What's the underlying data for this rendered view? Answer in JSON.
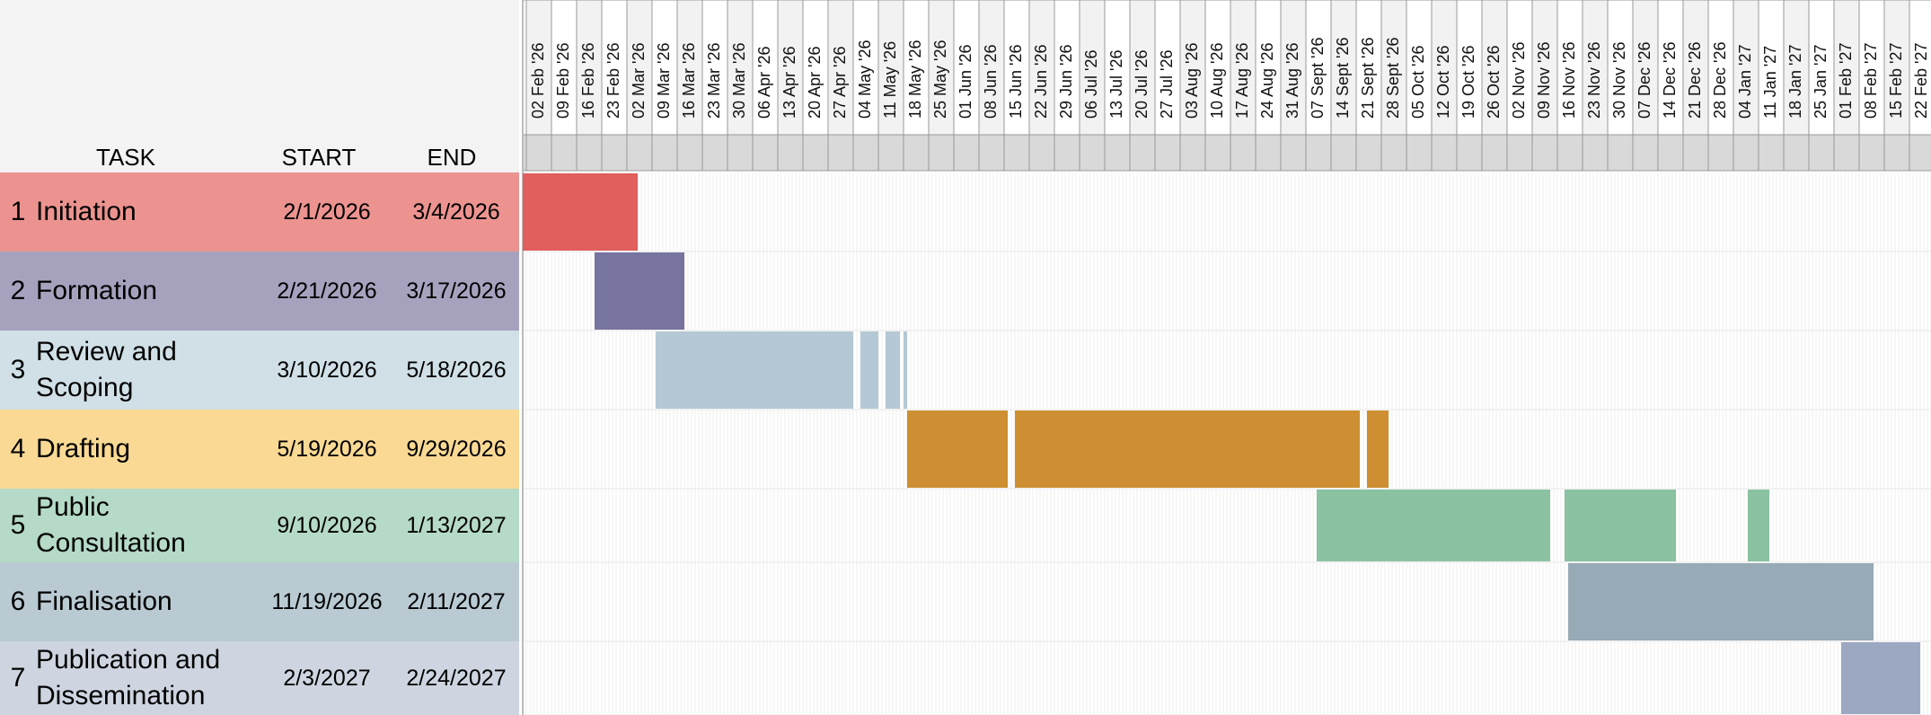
{
  "headers": {
    "task": "TASK",
    "start": "START",
    "end": "END"
  },
  "tasks": [
    {
      "num": "1",
      "name": "Initiation",
      "start": "2/1/2026",
      "end": "3/4/2026",
      "row_color": "#ec9390",
      "bar_color": "#e05e5b"
    },
    {
      "num": "2",
      "name": "Formation",
      "start": "2/21/2026",
      "end": "3/17/2026",
      "row_color": "#a6a2be",
      "bar_color": "#7874a0"
    },
    {
      "num": "3",
      "name": "Review and Scoping",
      "start": "3/10/2026",
      "end": "5/18/2026",
      "row_color": "#d0e0e6",
      "bar_color": "#b4c9d5"
    },
    {
      "num": "4",
      "name": "Drafting",
      "start": "5/19/2026",
      "end": "9/29/2026",
      "row_color": "#fad994",
      "bar_color": "#cd8f31"
    },
    {
      "num": "5",
      "name": "Public Consultation",
      "start": "9/10/2026",
      "end": "1/13/2027",
      "row_color": "#b5dac7",
      "bar_color": "#8bc2a1"
    },
    {
      "num": "6",
      "name": "Finalisation",
      "start": "11/19/2026",
      "end": "2/11/2027",
      "row_color": "#b9cad2",
      "bar_color": "#97abb6"
    },
    {
      "num": "7",
      "name": "Publication and Dissemination",
      "start": "2/3/2027",
      "end": "2/24/2027",
      "row_color": "#ced5e0",
      "bar_color": "#9ca8c2"
    }
  ],
  "chart_data": {
    "type": "bar",
    "orientation": "horizontal",
    "subtype": "gantt",
    "x_axis": {
      "type": "date",
      "tick_labels": [
        "02 Feb '26",
        "09 Feb '26",
        "16 Feb '26",
        "23 Feb '26",
        "02 Mar '26",
        "09 Mar '26",
        "16 Mar '26",
        "23 Mar '26",
        "30 Mar '26",
        "06 Apr '26",
        "13 Apr '26",
        "20 Apr '26",
        "27 Apr '26",
        "04 May '26",
        "11 May '26",
        "18 May '26",
        "25 May '26",
        "01 Jun '26",
        "08 Jun '26",
        "15 Jun '26",
        "22 Jun '26",
        "29 Jun '26",
        "06 Jul '26",
        "13 Jul '26",
        "20 Jul '26",
        "27 Jul '26",
        "03 Aug '26",
        "10 Aug '26",
        "17 Aug '26",
        "24 Aug '26",
        "31 Aug '26",
        "07 Sept '26",
        "14 Sept '26",
        "21 Sept '26",
        "28 Sept '26",
        "05 Oct '26",
        "12 Oct '26",
        "19 Oct '26",
        "26 Oct '26",
        "02 Nov '26",
        "09 Nov '26",
        "16 Nov '26",
        "23 Nov '26",
        "30 Nov '26",
        "07 Dec '26",
        "14 Dec '26",
        "21 Dec '26",
        "28 Dec '26",
        "04 Jan '27",
        "11 Jan '27",
        "18 Jan '27",
        "25 Jan '27",
        "01 Feb '27",
        "08 Feb '27",
        "15 Feb '27",
        "22 Feb '27"
      ],
      "range": [
        "2026-02-01",
        "2027-02-28"
      ]
    },
    "categories": [
      "Initiation",
      "Formation",
      "Review and Scoping",
      "Drafting",
      "Public Consultation",
      "Finalisation",
      "Publication and Dissemination"
    ],
    "segments": [
      [
        [
          "2026-02-01",
          "2026-03-04"
        ]
      ],
      [
        [
          "2026-02-21",
          "2026-03-17"
        ]
      ],
      [
        [
          "2026-03-10",
          "2026-05-03"
        ],
        [
          "2026-05-06",
          "2026-05-10"
        ],
        [
          "2026-05-13",
          "2026-05-16"
        ],
        [
          "2026-05-18",
          "2026-05-18"
        ]
      ],
      [
        [
          "2026-05-19",
          "2026-06-15"
        ],
        [
          "2026-06-18",
          "2026-09-21"
        ],
        [
          "2026-09-24",
          "2026-09-29"
        ]
      ],
      [
        [
          "2026-09-10",
          "2026-11-13"
        ],
        [
          "2026-11-18",
          "2026-12-18"
        ],
        [
          "2027-01-08",
          "2027-01-13"
        ]
      ],
      [
        [
          "2026-11-19",
          "2027-02-11"
        ]
      ],
      [
        [
          "2027-02-03",
          "2027-02-24"
        ]
      ]
    ],
    "grid": true
  }
}
